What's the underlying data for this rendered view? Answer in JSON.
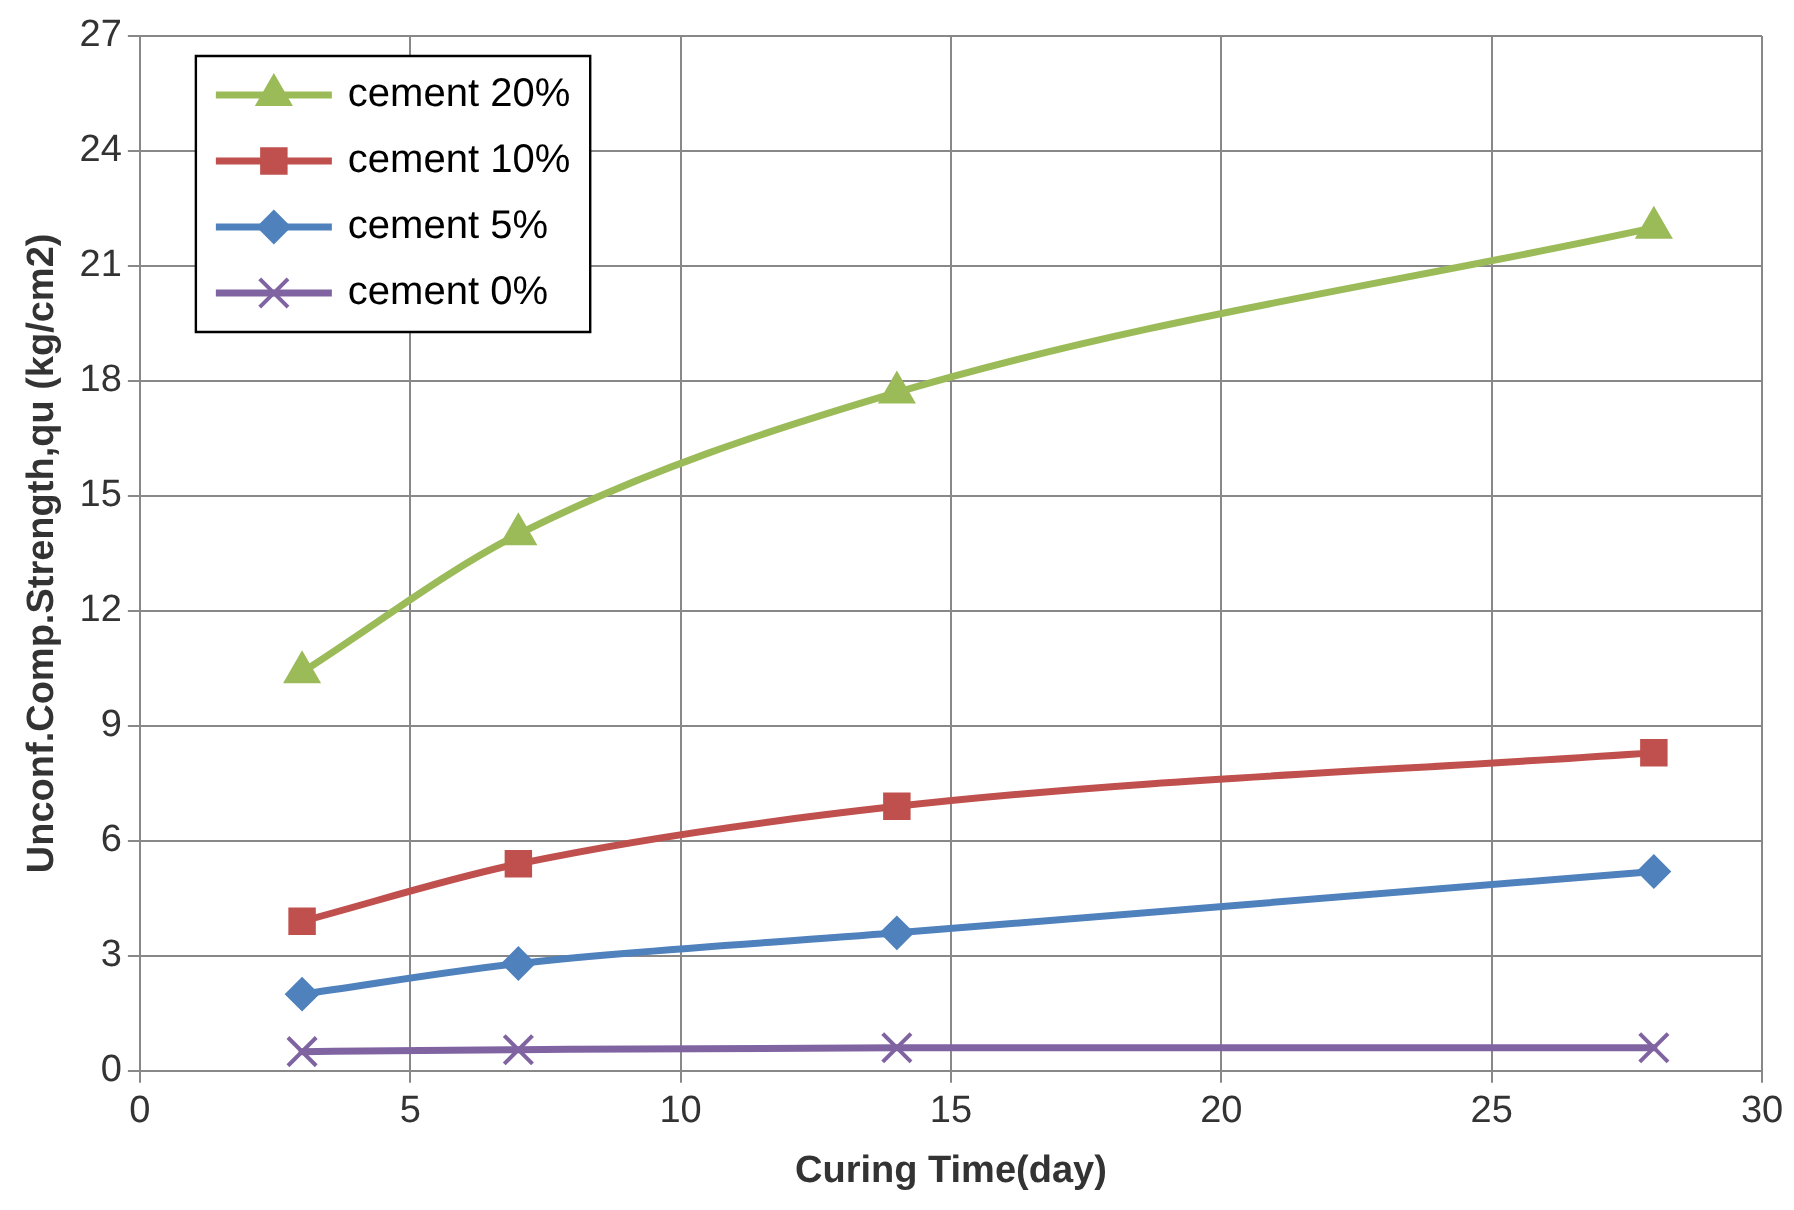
{
  "chart_data": {
    "type": "line",
    "xlabel": "Curing Time(day)",
    "ylabel": "Unconf.Comp.Strength,qu (kg/cm2)",
    "xlim": [
      0,
      30
    ],
    "xticks": [
      0,
      5,
      10,
      15,
      20,
      25,
      30
    ],
    "ylim": [
      0,
      27
    ],
    "yticks": [
      0,
      3,
      6,
      9,
      12,
      15,
      18,
      21,
      24,
      27
    ],
    "x": [
      3,
      7,
      14,
      28
    ],
    "grid": true,
    "legend": "top left",
    "series": [
      {
        "name": "cement 20%",
        "color": "#9bbb59",
        "marker": "triangle",
        "values": [
          10.4,
          14.0,
          17.7,
          22.0
        ]
      },
      {
        "name": "cement 10%",
        "color": "#c0504d",
        "marker": "square",
        "values": [
          3.9,
          5.4,
          6.9,
          8.3
        ]
      },
      {
        "name": "cement 5%",
        "color": "#4f81bd",
        "marker": "diamond",
        "values": [
          2.0,
          2.8,
          3.6,
          5.2
        ]
      },
      {
        "name": "cement 0%",
        "color": "#8064a2",
        "marker": "cross",
        "values": [
          0.5,
          0.55,
          0.6,
          0.6
        ]
      }
    ]
  }
}
